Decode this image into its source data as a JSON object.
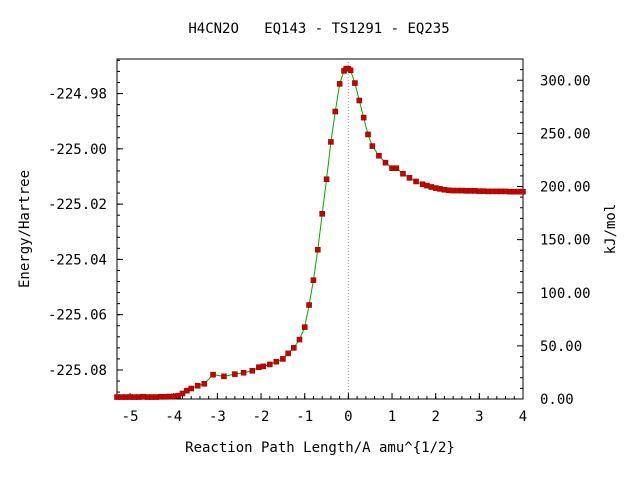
{
  "chart_data": {
    "type": "line",
    "title": "H4CN2O   EQ143 - TS1291 - EQ235",
    "xlabel": "Reaction Path Length/A amu^{1/2}",
    "ylabel": "Energy/Hartree",
    "y2label": "kJ/mol",
    "xlim": [
      -5.3,
      4.0
    ],
    "ylim": [
      -225.0905,
      -224.9675
    ],
    "y2lim": [
      0.0,
      320.0
    ],
    "x_ticks": [
      -5,
      -4,
      -3,
      -2,
      -1,
      0,
      1,
      2,
      3,
      4
    ],
    "x_tick_labels": [
      "-5",
      "-4",
      "-3",
      "-2",
      "-1",
      "0",
      "1",
      "2",
      "3",
      "4"
    ],
    "y_ticks": [
      -225.08,
      -225.06,
      -225.04,
      -225.02,
      -225.0,
      -224.98
    ],
    "y_tick_labels": [
      "-225.08",
      "-225.06",
      "-225.04",
      "-225.02",
      "-225.00",
      "-224.98"
    ],
    "y2_ticks": [
      0,
      50,
      100,
      150,
      200,
      250,
      300
    ],
    "y2_tick_labels": [
      "0.00",
      "50.00",
      "100.00",
      "150.00",
      "200.00",
      "250.00",
      "300.00"
    ],
    "ts_marker_x": 0.0,
    "grid": false,
    "colors": {
      "line": "#00aa00",
      "marker": "#cc0000",
      "ts_line": "#999999"
    },
    "series": [
      {
        "x": [
          -5.3,
          -5.2,
          -5.1,
          -5.0,
          -4.9,
          -4.8,
          -4.7,
          -4.6,
          -4.5,
          -4.4,
          -4.3,
          -4.2,
          -4.1,
          -4.0,
          -3.9,
          -3.8,
          -3.7,
          -3.6,
          -3.45,
          -3.3,
          -3.1,
          -2.85,
          -2.6,
          -2.4,
          -2.2,
          -2.05,
          -1.95,
          -1.8,
          -1.65,
          -1.5,
          -1.38,
          -1.25,
          -1.12,
          -1.0,
          -0.9,
          -0.8,
          -0.7,
          -0.6,
          -0.5,
          -0.4,
          -0.3,
          -0.2,
          -0.1,
          -0.05,
          0.0,
          0.05,
          0.15,
          0.25,
          0.35,
          0.45,
          0.55,
          0.7,
          0.85,
          1.0,
          1.1,
          1.25,
          1.4,
          1.55,
          1.7,
          1.8,
          1.9,
          2.0,
          2.1,
          2.2,
          2.3,
          2.4,
          2.5,
          2.6,
          2.7,
          2.8,
          2.9,
          3.0,
          3.1,
          3.2,
          3.3,
          3.4,
          3.5,
          3.6,
          3.7,
          3.8,
          3.9,
          4.0
        ],
        "y": [
          -225.0898,
          -225.0898,
          -225.0898,
          -225.0898,
          -225.0898,
          -225.0898,
          -225.0897,
          -225.0898,
          -225.0898,
          -225.0898,
          -225.0897,
          -225.0897,
          -225.0896,
          -225.0896,
          -225.0893,
          -225.0885,
          -225.0875,
          -225.0867,
          -225.0857,
          -225.085,
          -225.0817,
          -225.0823,
          -225.0815,
          -225.081,
          -225.0803,
          -225.079,
          -225.0787,
          -225.078,
          -225.077,
          -225.076,
          -225.074,
          -225.072,
          -225.069,
          -225.0645,
          -225.0565,
          -225.0475,
          -225.0365,
          -225.0235,
          -225.011,
          -224.9975,
          -224.9865,
          -224.9765,
          -224.9718,
          -224.971,
          -224.971,
          -224.9716,
          -224.9762,
          -224.9825,
          -224.9887,
          -224.9948,
          -224.999,
          -225.0025,
          -225.005,
          -225.007,
          -225.007,
          -225.009,
          -225.0105,
          -225.0118,
          -225.0128,
          -225.0133,
          -225.0138,
          -225.0142,
          -225.0145,
          -225.0148,
          -225.015,
          -225.0151,
          -225.0151,
          -225.0151,
          -225.0152,
          -225.0152,
          -225.0152,
          -225.0153,
          -225.0153,
          -225.0154,
          -225.0154,
          -225.0154,
          -225.0154,
          -225.0154,
          -225.0155,
          -225.0155,
          -225.0155,
          -225.0155
        ]
      }
    ]
  }
}
